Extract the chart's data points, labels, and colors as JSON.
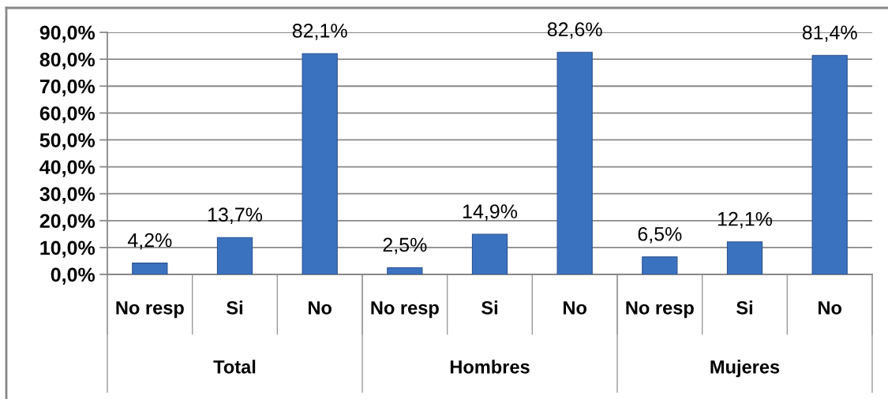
{
  "chart_data": {
    "type": "bar",
    "categories": [
      "No resp",
      "Si",
      "No",
      "No resp",
      "Si",
      "No",
      "No resp",
      "Si",
      "No"
    ],
    "values": [
      4.2,
      13.7,
      82.1,
      2.5,
      14.9,
      82.6,
      6.5,
      12.1,
      81.4
    ],
    "value_labels": [
      "4,2%",
      "13,7%",
      "82,1%",
      "2,5%",
      "14,9%",
      "82,6%",
      "6,5%",
      "12,1%",
      "81,4%"
    ],
    "color": "#3b72c0",
    "ylim": [
      0,
      90
    ],
    "yticks": [
      {
        "value": 0,
        "label": "0,0%"
      },
      {
        "value": 10,
        "label": "10,0%"
      },
      {
        "value": 20,
        "label": "20,0%"
      },
      {
        "value": 30,
        "label": "30,0%"
      },
      {
        "value": 40,
        "label": "40,0%"
      },
      {
        "value": 50,
        "label": "50,0%"
      },
      {
        "value": 60,
        "label": "60,0%"
      },
      {
        "value": 70,
        "label": "70,0%"
      },
      {
        "value": 80,
        "label": "80,0%"
      },
      {
        "value": 90,
        "label": "90,0%"
      }
    ],
    "grid": "y",
    "annotations": [
      "Total",
      "Hombres",
      "Mujeres"
    ]
  }
}
